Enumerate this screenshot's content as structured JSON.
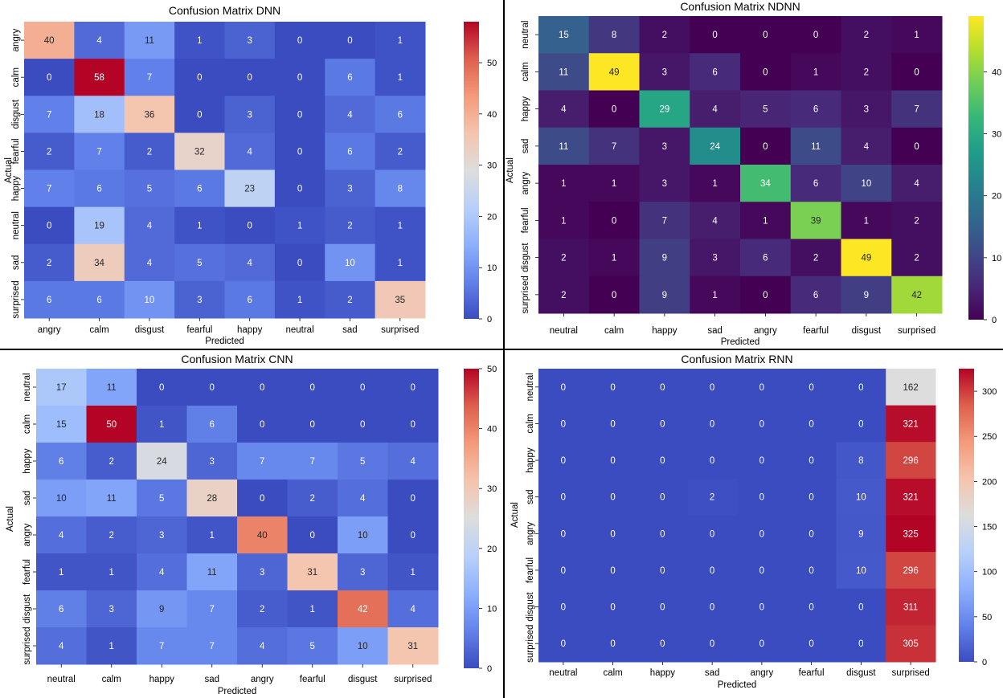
{
  "chart_data": [
    {
      "type": "heatmap",
      "title": "Confusion Matrix DNN",
      "xlabel": "Predicted",
      "ylabel": "Actual",
      "colormap": "coolwarm",
      "x_labels": [
        "angry",
        "calm",
        "disgust",
        "fearful",
        "happy",
        "neutral",
        "sad",
        "surprised"
      ],
      "y_labels": [
        "angry",
        "calm",
        "disgust",
        "fearful",
        "happy",
        "neutral",
        "sad",
        "surprised"
      ],
      "matrix": [
        [
          40,
          4,
          11,
          1,
          3,
          0,
          0,
          1
        ],
        [
          0,
          58,
          7,
          0,
          0,
          0,
          6,
          1
        ],
        [
          7,
          18,
          36,
          0,
          3,
          0,
          4,
          6
        ],
        [
          2,
          7,
          2,
          32,
          4,
          0,
          6,
          2
        ],
        [
          7,
          6,
          5,
          6,
          23,
          0,
          3,
          8
        ],
        [
          0,
          19,
          4,
          1,
          0,
          1,
          2,
          1
        ],
        [
          2,
          34,
          4,
          5,
          4,
          0,
          10,
          1
        ],
        [
          6,
          6,
          10,
          3,
          6,
          1,
          2,
          35
        ]
      ],
      "vmin": 0,
      "vmax": 58,
      "colorbar_ticks": [
        0,
        10,
        20,
        30,
        40,
        50
      ]
    },
    {
      "type": "heatmap",
      "title": "Confusion Matrix NDNN",
      "xlabel": "Predicted",
      "ylabel": "Actual",
      "colormap": "viridis",
      "x_labels": [
        "neutral",
        "calm",
        "happy",
        "sad",
        "angry",
        "fearful",
        "disgust",
        "surprised"
      ],
      "y_labels": [
        "neutral",
        "calm",
        "happy",
        "sad",
        "angry",
        "fearful",
        "disgust",
        "surprised"
      ],
      "matrix": [
        [
          15,
          8,
          2,
          0,
          0,
          0,
          2,
          1
        ],
        [
          11,
          49,
          3,
          6,
          0,
          1,
          2,
          0
        ],
        [
          4,
          0,
          29,
          4,
          5,
          6,
          3,
          7
        ],
        [
          11,
          7,
          3,
          24,
          0,
          11,
          4,
          0
        ],
        [
          1,
          1,
          3,
          1,
          34,
          6,
          10,
          4
        ],
        [
          1,
          0,
          7,
          4,
          1,
          39,
          1,
          2
        ],
        [
          2,
          1,
          9,
          3,
          6,
          2,
          49,
          2
        ],
        [
          2,
          0,
          9,
          1,
          0,
          6,
          9,
          42
        ]
      ],
      "vmin": 0,
      "vmax": 49,
      "colorbar_ticks": [
        0,
        10,
        20,
        30,
        40
      ]
    },
    {
      "type": "heatmap",
      "title": "Confusion Matrix CNN",
      "xlabel": "Predicted",
      "ylabel": "Actual",
      "colormap": "coolwarm",
      "x_labels": [
        "neutral",
        "calm",
        "happy",
        "sad",
        "angry",
        "fearful",
        "disgust",
        "surprised"
      ],
      "y_labels": [
        "neutral",
        "calm",
        "happy",
        "sad",
        "angry",
        "fearful",
        "disgust",
        "surprised"
      ],
      "matrix": [
        [
          17,
          11,
          0,
          0,
          0,
          0,
          0,
          0
        ],
        [
          15,
          50,
          1,
          6,
          0,
          0,
          0,
          0
        ],
        [
          6,
          2,
          24,
          3,
          7,
          7,
          5,
          4
        ],
        [
          10,
          11,
          5,
          28,
          0,
          2,
          4,
          0
        ],
        [
          4,
          2,
          3,
          1,
          40,
          0,
          10,
          0
        ],
        [
          1,
          1,
          4,
          11,
          3,
          31,
          3,
          1
        ],
        [
          6,
          3,
          9,
          7,
          2,
          1,
          42,
          4
        ],
        [
          4,
          1,
          7,
          7,
          4,
          5,
          10,
          31
        ]
      ],
      "vmin": 0,
      "vmax": 50,
      "colorbar_ticks": [
        0,
        10,
        20,
        30,
        40,
        50
      ]
    },
    {
      "type": "heatmap",
      "title": "Confusion Matrix RNN",
      "xlabel": "Predicted",
      "ylabel": "Actual",
      "colormap": "coolwarm",
      "x_labels": [
        "neutral",
        "calm",
        "happy",
        "sad",
        "angry",
        "fearful",
        "disgust",
        "surprised"
      ],
      "y_labels": [
        "neutral",
        "calm",
        "happy",
        "sad",
        "angry",
        "fearful",
        "disgust",
        "surprised"
      ],
      "matrix": [
        [
          0,
          0,
          0,
          0,
          0,
          0,
          0,
          162
        ],
        [
          0,
          0,
          0,
          0,
          0,
          0,
          0,
          321
        ],
        [
          0,
          0,
          0,
          0,
          0,
          0,
          8,
          296
        ],
        [
          0,
          0,
          0,
          2,
          0,
          0,
          10,
          321
        ],
        [
          0,
          0,
          0,
          0,
          0,
          0,
          9,
          325
        ],
        [
          0,
          0,
          0,
          0,
          0,
          0,
          10,
          296
        ],
        [
          0,
          0,
          0,
          0,
          0,
          0,
          0,
          311
        ],
        [
          0,
          0,
          0,
          0,
          0,
          0,
          0,
          305
        ]
      ],
      "vmin": 0,
      "vmax": 325,
      "colorbar_ticks": [
        0,
        50,
        100,
        150,
        200,
        250,
        300
      ]
    }
  ]
}
